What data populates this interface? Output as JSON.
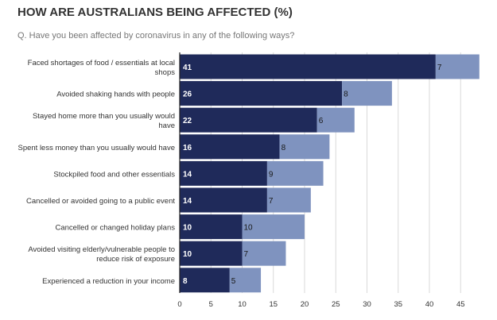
{
  "title": "HOW ARE AUSTRALIANS BEING AFFECTED (%)",
  "subtitle": "Q. Have you been affected by coronavirus in any of the following ways?",
  "colors": {
    "primary": "#1f2a5a",
    "secondary": "#7f93bf",
    "axis": "#222222",
    "grid": "#d9d9d9",
    "label": "#333333"
  },
  "chart_data": {
    "type": "bar",
    "orientation": "horizontal",
    "stacked": true,
    "categories": [
      "Faced shortages of food / essentials at local shops",
      "Avoided shaking hands with people",
      "Stayed home more than you usually would have",
      "Spent less money than you usually would have",
      "Stockpiled food and other essentials",
      "Cancelled or avoided going to a public event",
      "Cancelled or changed holiday plans",
      "Avoided visiting elderly/vulnerable people to reduce risk of exposure",
      "Experienced a reduction in your income"
    ],
    "category_lines": [
      [
        "Faced shortages of food / essentials at local",
        "shops"
      ],
      [
        "Avoided shaking hands with people"
      ],
      [
        "Stayed home more than you usually would",
        "have"
      ],
      [
        "Spent less money than you usually would have"
      ],
      [
        "Stockpiled food and other essentials"
      ],
      [
        "Cancelled or avoided going to a public event"
      ],
      [
        "Cancelled or changed holiday plans"
      ],
      [
        "Avoided visiting elderly/vulnerable people to",
        "reduce risk of exposure"
      ],
      [
        "Experienced a reduction in your income"
      ]
    ],
    "series": [
      {
        "values": [
          41,
          26,
          22,
          16,
          14,
          14,
          10,
          10,
          8
        ]
      },
      {
        "values": [
          7,
          8,
          6,
          8,
          9,
          7,
          10,
          7,
          5
        ]
      }
    ],
    "xlim": [
      0,
      49
    ],
    "xticks": [
      0,
      5,
      10,
      15,
      20,
      25,
      30,
      35,
      40,
      45
    ],
    "grid": true,
    "legend": "none"
  }
}
